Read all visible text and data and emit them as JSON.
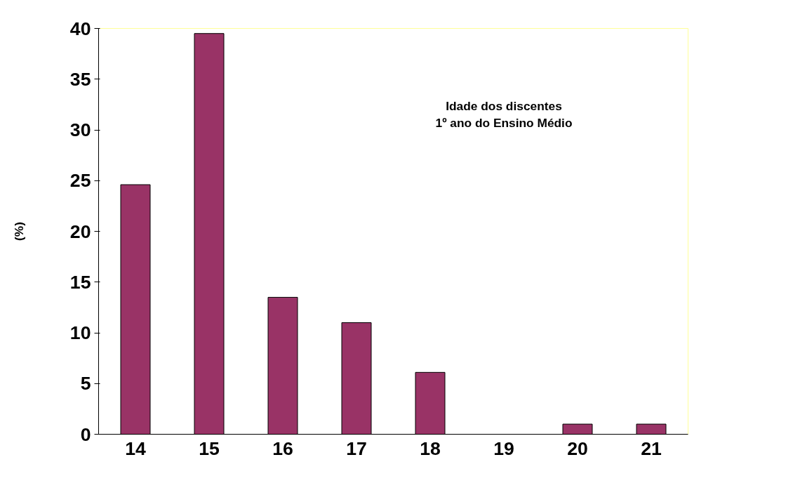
{
  "chart_data": {
    "type": "bar",
    "title": "Idade dos discentes\n1º ano do Ensino Médio",
    "ylabel": "(%)",
    "categories": [
      "14",
      "15",
      "16",
      "17",
      "18",
      "19",
      "20",
      "21"
    ],
    "values": [
      24.6,
      39.5,
      13.5,
      11.0,
      6.1,
      0,
      1.0,
      1.0
    ],
    "color": "#993366",
    "ylim": [
      0,
      40
    ],
    "yticks": [
      0,
      5,
      10,
      15,
      20,
      25,
      30,
      35,
      40
    ],
    "grid": false
  }
}
